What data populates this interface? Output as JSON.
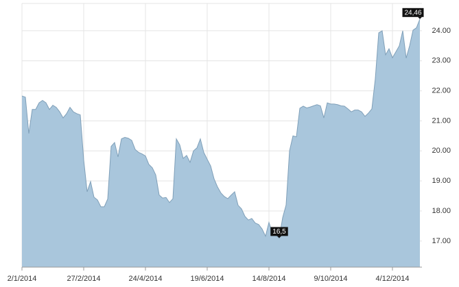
{
  "chart_data": {
    "type": "area",
    "categories": [
      "2/1/2014",
      null,
      null,
      null,
      null,
      null,
      null,
      null,
      null,
      null,
      null,
      null,
      null,
      null,
      null,
      null,
      null,
      null,
      "27/2/2014",
      null,
      null,
      null,
      null,
      null,
      null,
      null,
      null,
      null,
      null,
      null,
      null,
      null,
      null,
      null,
      null,
      null,
      "24/4/2014",
      null,
      null,
      null,
      null,
      null,
      null,
      null,
      null,
      null,
      null,
      null,
      null,
      null,
      null,
      null,
      null,
      null,
      "19/6/2014",
      null,
      null,
      null,
      null,
      null,
      null,
      null,
      null,
      null,
      null,
      null,
      null,
      null,
      null,
      null,
      null,
      null,
      "14/8/2014",
      null,
      null,
      null,
      null,
      null,
      null,
      null,
      null,
      null,
      null,
      null,
      null,
      null,
      null,
      null,
      null,
      null,
      "9/10/2014",
      null,
      null,
      null,
      null,
      null,
      null,
      null,
      null,
      null,
      null,
      null,
      null,
      null,
      null,
      null,
      null,
      null,
      "4/12/2014",
      null,
      null,
      null,
      null,
      null,
      null,
      null,
      null
    ],
    "values": [
      21.83,
      21.79,
      20.58,
      21.38,
      21.38,
      21.6,
      21.68,
      21.6,
      21.38,
      21.52,
      21.45,
      21.3,
      21.1,
      21.24,
      21.45,
      21.3,
      21.24,
      21.2,
      19.7,
      18.64,
      18.98,
      18.46,
      18.37,
      18.14,
      18.14,
      18.4,
      20.15,
      20.28,
      19.8,
      20.4,
      20.45,
      20.42,
      20.35,
      20.05,
      19.95,
      19.9,
      19.83,
      19.55,
      19.44,
      19.2,
      18.53,
      18.43,
      18.45,
      18.28,
      18.41,
      20.4,
      20.2,
      19.75,
      19.85,
      19.62,
      20.0,
      20.1,
      20.4,
      19.95,
      19.72,
      19.5,
      19.07,
      18.8,
      18.6,
      18.48,
      18.41,
      18.53,
      18.64,
      18.19,
      18.07,
      17.82,
      17.7,
      17.75,
      17.6,
      17.55,
      17.4,
      17.16,
      17.62,
      17.27,
      17.2,
      17.1,
      17.78,
      18.2,
      20.0,
      20.5,
      20.47,
      21.42,
      21.49,
      21.43,
      21.46,
      21.5,
      21.54,
      21.5,
      21.1,
      21.6,
      21.56,
      21.56,
      21.54,
      21.5,
      21.49,
      21.4,
      21.3,
      21.36,
      21.36,
      21.3,
      21.15,
      21.26,
      21.4,
      22.4,
      23.93,
      24.0,
      23.2,
      23.4,
      23.1,
      23.3,
      23.5,
      24.0,
      23.09,
      23.5,
      24.02,
      24.1,
      24.39
    ],
    "color": "#a9c6dc",
    "line_color": "#7f9fb8",
    "ylim": [
      16.13,
      24.91
    ],
    "yticks": [
      {
        "value": 17,
        "label": "17.00"
      },
      {
        "value": 18,
        "label": "18.00"
      },
      {
        "value": 19,
        "label": "19.00"
      },
      {
        "value": 20,
        "label": "20.00"
      },
      {
        "value": 21,
        "label": "21.00"
      },
      {
        "value": 22,
        "label": "22.00"
      },
      {
        "value": 23,
        "label": "23.00"
      },
      {
        "value": 24,
        "label": "24.00"
      }
    ],
    "grid": true,
    "min_label": {
      "value": 16.5,
      "label": "16,5"
    },
    "max_label": {
      "value": 24.46,
      "label": "24,46"
    }
  }
}
